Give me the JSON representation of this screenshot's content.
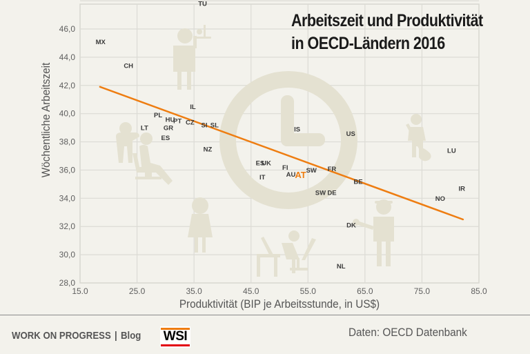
{
  "chart_data": {
    "type": "scatter",
    "title": "Arbeitszeit und Produktivität in OECD-Ländern 2016",
    "title_lines": [
      "Arbeitszeit und Produktivität",
      "in OECD-Ländern 2016"
    ],
    "xlabel": "Produktivität (BIP je Arbeitsstunde, in US$)",
    "ylabel": "Wöchentliche Arbeitszeit",
    "xlim": [
      15,
      85
    ],
    "ylim": [
      28,
      47
    ],
    "x_ticks": [
      15,
      25,
      35,
      45,
      55,
      65,
      75,
      85
    ],
    "x_tick_labels": [
      "15.0",
      "25.0",
      "35.0",
      "45.0",
      "55.0",
      "65.0",
      "75.0",
      "85.0"
    ],
    "y_ticks": [
      28,
      30,
      32,
      34,
      36,
      38,
      40,
      42,
      44,
      46
    ],
    "y_tick_labels": [
      "28,0",
      "30,0",
      "32,0",
      "34,0",
      "36,0",
      "38,0",
      "40,0",
      "42,0",
      "44,0",
      "46,0"
    ],
    "grid": true,
    "legend": "none",
    "points": [
      {
        "label": "MX",
        "x": 18.6,
        "y": 45.1
      },
      {
        "label": "CH",
        "x": 23.5,
        "y": 43.4
      },
      {
        "label": "TU",
        "x": 36.5,
        "y": 47.8
      },
      {
        "label": "IL",
        "x": 34.8,
        "y": 40.5
      },
      {
        "label": "PL",
        "x": 28.7,
        "y": 39.9
      },
      {
        "label": "HU",
        "x": 30.8,
        "y": 39.6
      },
      {
        "label": "PT",
        "x": 32.1,
        "y": 39.5
      },
      {
        "label": "CZ",
        "x": 34.3,
        "y": 39.4
      },
      {
        "label": "SI",
        "x": 36.8,
        "y": 39.2
      },
      {
        "label": "SL",
        "x": 38.6,
        "y": 39.2
      },
      {
        "label": "LT",
        "x": 26.3,
        "y": 39.0
      },
      {
        "label": "GR",
        "x": 30.5,
        "y": 39.0
      },
      {
        "label": "ES",
        "x": 30.0,
        "y": 38.3
      },
      {
        "label": "NZ",
        "x": 37.4,
        "y": 37.5
      },
      {
        "label": "IS",
        "x": 53.1,
        "y": 38.9
      },
      {
        "label": "US",
        "x": 62.5,
        "y": 38.6
      },
      {
        "label": "LU",
        "x": 80.2,
        "y": 37.4
      },
      {
        "label": "ES",
        "x": 46.6,
        "y": 36.5
      },
      {
        "label": "UK",
        "x": 47.7,
        "y": 36.5
      },
      {
        "label": "FI",
        "x": 51.0,
        "y": 36.2
      },
      {
        "label": "FR",
        "x": 59.2,
        "y": 36.1
      },
      {
        "label": "SW",
        "x": 55.6,
        "y": 36.0
      },
      {
        "label": "AU",
        "x": 52.0,
        "y": 35.7
      },
      {
        "label": "AT",
        "x": 53.7,
        "y": 35.6,
        "highlight": true
      },
      {
        "label": "IT",
        "x": 47.0,
        "y": 35.5
      },
      {
        "label": "BE",
        "x": 63.8,
        "y": 35.2
      },
      {
        "label": "IR",
        "x": 82.0,
        "y": 34.7
      },
      {
        "label": "SW",
        "x": 57.2,
        "y": 34.4
      },
      {
        "label": "DE",
        "x": 59.2,
        "y": 34.4
      },
      {
        "label": "NO",
        "x": 78.2,
        "y": 34.0
      },
      {
        "label": "DK",
        "x": 62.6,
        "y": 32.1
      },
      {
        "label": "NL",
        "x": 60.8,
        "y": 29.2
      }
    ],
    "trendline": {
      "x": [
        18.5,
        82.2
      ],
      "y": [
        41.9,
        32.5
      ]
    },
    "colors": {
      "trendline": "#ee7d11",
      "highlight": "#ee7d11",
      "label": "#3a3a3a",
      "grid": "#dcdbd5",
      "background": "#f3f2ec",
      "pictogram": "#e4e1d1"
    },
    "decorations": [
      "clock-icon",
      "waiter-icon",
      "hairdresser-icon",
      "cleaner-icon",
      "woman-icon",
      "office-worker-icon",
      "mechanic-icon"
    ]
  },
  "footer": {
    "brand": "WORK ON PROGRESS",
    "separator": "|",
    "blog": "Blog",
    "logo": "WSI",
    "source": "Daten: OECD Datenbank"
  }
}
